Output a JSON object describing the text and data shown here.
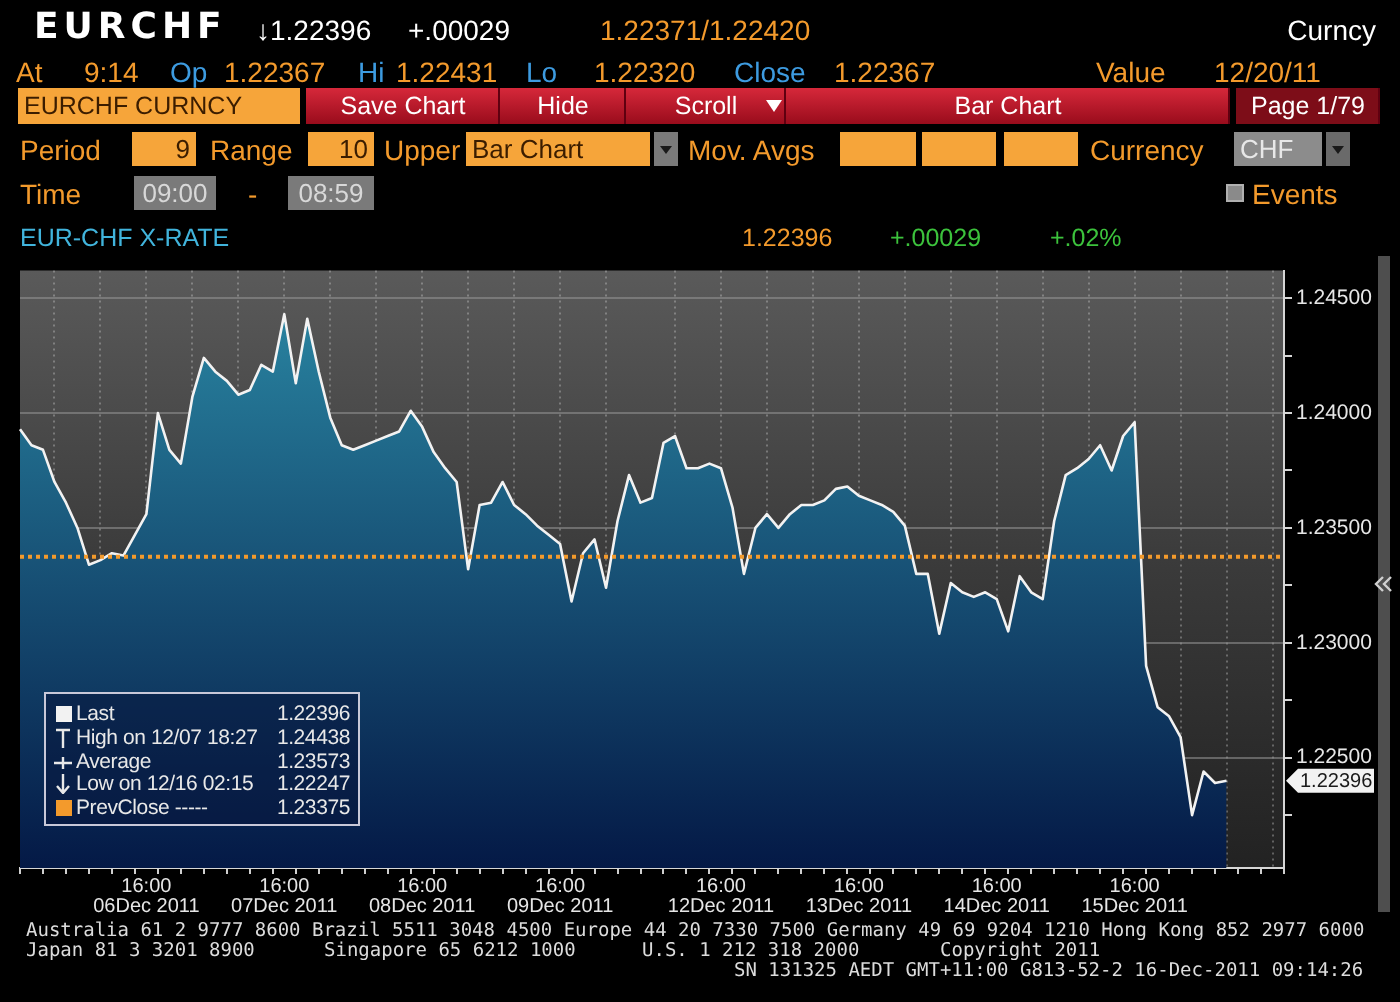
{
  "chart_data": {
    "type": "area",
    "title": "EUR-CHF X-RATE",
    "categories": [
      null,
      null,
      null,
      null,
      null,
      null,
      null,
      null,
      null,
      null,
      null,
      "16:00\n06Dec 2011",
      null,
      null,
      null,
      null,
      null,
      null,
      null,
      null,
      null,
      null,
      null,
      "16:00\n07Dec 2011",
      null,
      null,
      null,
      null,
      null,
      null,
      null,
      null,
      null,
      null,
      null,
      "16:00\n08Dec 2011",
      null,
      null,
      null,
      null,
      null,
      null,
      null,
      null,
      null,
      null,
      null,
      "16:00\n09Dec 2011",
      null,
      null,
      null,
      null,
      null,
      null,
      null,
      null,
      null,
      null,
      null,
      null,
      null,
      "16:00\n12Dec 2011",
      null,
      null,
      null,
      null,
      null,
      null,
      null,
      null,
      null,
      null,
      null,
      "16:00\n13Dec 2011",
      null,
      null,
      null,
      null,
      null,
      null,
      null,
      null,
      null,
      null,
      null,
      "16:00\n14Dec 2011",
      null,
      null,
      null,
      null,
      null,
      null,
      null,
      null,
      null,
      null,
      null,
      "16:00\n15Dec 2011",
      null,
      null,
      null,
      null,
      null,
      null,
      null,
      null,
      null,
      null,
      null,
      null,
      null
    ],
    "values": [
      1.2393,
      1.2386,
      1.2384,
      1.237,
      1.2361,
      1.235,
      1.2334,
      1.2336,
      1.2339,
      1.2338,
      1.2347,
      1.2356,
      1.24,
      1.2384,
      1.2378,
      1.2407,
      1.2424,
      1.2418,
      1.2414,
      1.2408,
      1.241,
      1.2421,
      1.2418,
      1.2443,
      1.2413,
      1.2441,
      1.2418,
      1.2398,
      1.2386,
      1.2384,
      1.2386,
      1.2388,
      1.239,
      1.2392,
      1.2401,
      1.2394,
      1.2383,
      1.2376,
      1.237,
      1.2332,
      1.236,
      1.2361,
      1.237,
      1.236,
      1.2356,
      1.2351,
      1.2347,
      1.2343,
      1.2318,
      1.2339,
      1.2345,
      1.2324,
      1.2353,
      1.2373,
      1.2361,
      1.2363,
      1.2387,
      1.239,
      1.2376,
      1.2376,
      1.2378,
      1.2376,
      1.2359,
      1.233,
      1.235,
      1.2356,
      1.235,
      1.2356,
      1.236,
      1.236,
      1.2362,
      1.2367,
      1.2368,
      1.2364,
      1.2362,
      1.236,
      1.2357,
      1.2351,
      1.233,
      1.233,
      1.2304,
      1.2326,
      1.2322,
      1.232,
      1.2322,
      1.2319,
      1.2305,
      1.2329,
      1.2322,
      1.2319,
      1.2353,
      1.2373,
      1.2376,
      1.238,
      1.2386,
      1.2375,
      1.239,
      1.2396,
      1.229,
      1.2272,
      1.2268,
      1.2259,
      1.2225,
      1.2244,
      1.2239,
      1.224,
      null,
      null,
      null,
      null,
      null
    ],
    "color": "#2b8aa6",
    "marker": "none",
    "grid": true,
    "legend": "bottom left",
    "ylim": [
      1.2202,
      1.2462
    ],
    "yticks": [
      {
        "value": 1.2225,
        "label": null
      },
      {
        "value": 1.225,
        "label": "1.22500"
      },
      {
        "value": 1.2275,
        "label": null
      },
      {
        "value": 1.23,
        "label": "1.23000"
      },
      {
        "value": 1.2325,
        "label": null
      },
      {
        "value": 1.235,
        "label": "1.23500"
      },
      {
        "value": 1.2375,
        "label": null
      },
      {
        "value": 1.24,
        "label": "1.24000"
      },
      {
        "value": 1.2425,
        "label": null
      },
      {
        "value": 1.245,
        "label": "1.24500"
      }
    ],
    "ref_lines": [
      {
        "axis": "y",
        "value": 1.23375,
        "label": "PrevClose -----",
        "color": "#f39a2c",
        "line_style": "dotted"
      }
    ],
    "annotations": [
      "EURCHF",
      "↓1.22396",
      "+.00029",
      "1.22371/1.22420",
      "Curncy",
      "At",
      "9:14",
      "Op",
      "1.22367",
      "Hi",
      "1.22431",
      "Lo",
      "1.22320",
      "Close",
      "1.22367",
      "Value",
      "12/20/11",
      "EURCHF CURNCY",
      "Save Chart",
      "Hide",
      "Scroll",
      "Bar Chart",
      "Page 1/79",
      "Period",
      "9",
      "Range",
      "10",
      "Upper",
      "Bar Chart",
      "Mov. Avgs",
      "Currency",
      "CHF",
      "Time",
      "09:00",
      "-",
      "08:59",
      "Events",
      "1.22396",
      "+.00029",
      "+.02%",
      "Last",
      "1.22396",
      "High on 12/07 18:27",
      "1.24438",
      "Average",
      "1.23573",
      "Low on 12/16 02:15",
      "1.22247",
      "Australia 61 2 9777 8600 Brazil 5511 3048 4500 Europe 44 20 7330 7500 Germany 49 69 9204 1210 Hong Kong 852 2977 6000",
      "Japan 81 3 3201 8900",
      "Singapore 65 6212 1000",
      "U.S. 1 212 318 2000",
      "Copyright 2011",
      "SN 131325 AEDT GMT+11:00 G813-52-2 16-Dec-2011 09:14:26",
      "1.22396",
      "1.23375"
    ]
  }
}
